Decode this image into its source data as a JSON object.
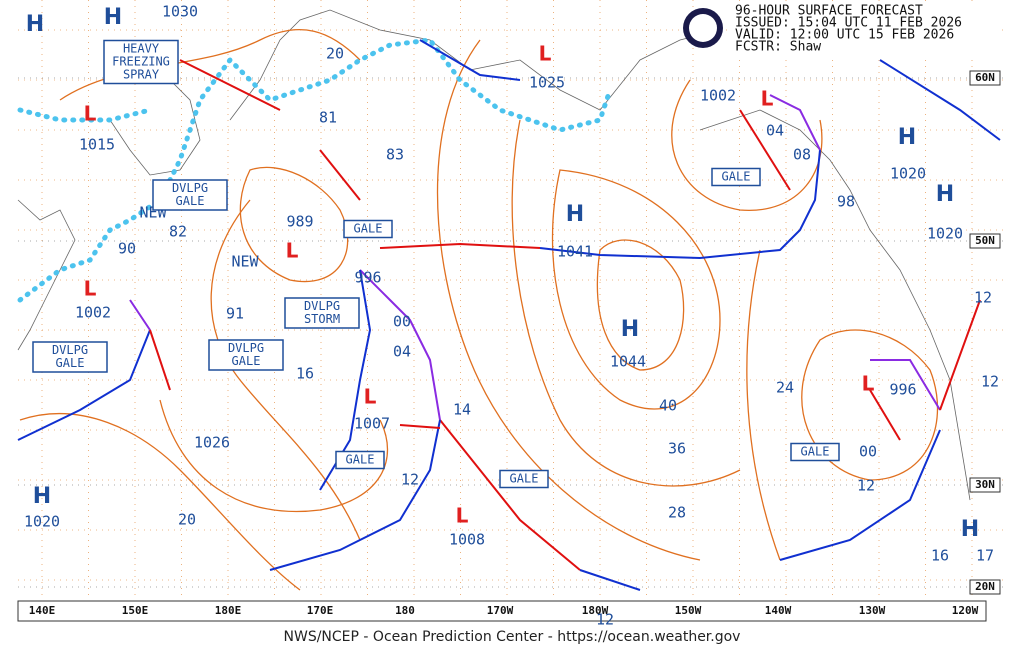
{
  "header": {
    "title": "96-HOUR SURFACE FORECAST",
    "issued": "ISSUED: 15:04 UTC 11 FEB 2026",
    "valid": "VALID:  12:00 UTC 15 FEB 2026",
    "forecaster": "FCSTR:  Shaw"
  },
  "footer": "NWS/NCEP - Ocean Prediction Center - https://ocean.weather.gov",
  "longitude_labels": [
    "140E",
    "150E",
    "180E",
    "170E",
    "180",
    "170W",
    "180W",
    "150W",
    "140W",
    "130W",
    "120W"
  ],
  "latitude_labels": [
    "60N",
    "50N",
    "30N",
    "20N"
  ],
  "high_symbols": [
    "H",
    "H",
    "H",
    "H",
    "H",
    "H",
    "H",
    "H"
  ],
  "low_symbols": [
    "L",
    "L",
    "L",
    "L",
    "L",
    "L",
    "L",
    "L"
  ],
  "map_labels": [
    "1030",
    "1015",
    "90",
    "1002",
    "82",
    "NEW",
    "NEW",
    "91",
    "989",
    "81",
    "83",
    "996",
    "00",
    "04",
    "16",
    "1007",
    "14",
    "12",
    "1026",
    "20",
    "1020",
    "1008",
    "1025",
    "1041",
    "1044",
    "40",
    "36",
    "28",
    "24",
    "1002",
    "04",
    "08",
    "98",
    "1020",
    "1020",
    "996",
    "00",
    "12",
    "12",
    "12",
    "16",
    "17",
    "12",
    "20"
  ],
  "boxes": [
    {
      "lines": [
        "HEAVY",
        "FREEZING",
        "SPRAY"
      ]
    },
    {
      "lines": [
        "DVLPG",
        "GALE"
      ]
    },
    {
      "lines": [
        "GALE"
      ]
    },
    {
      "lines": [
        "DVLPG",
        "STORM"
      ]
    },
    {
      "lines": [
        "DVLPG",
        "GALE"
      ]
    },
    {
      "lines": [
        "DVLPG",
        "GALE"
      ]
    },
    {
      "lines": [
        "GALE"
      ]
    },
    {
      "lines": [
        "GALE"
      ]
    },
    {
      "lines": [
        "GALE"
      ]
    },
    {
      "lines": [
        "GALE"
      ]
    }
  ]
}
